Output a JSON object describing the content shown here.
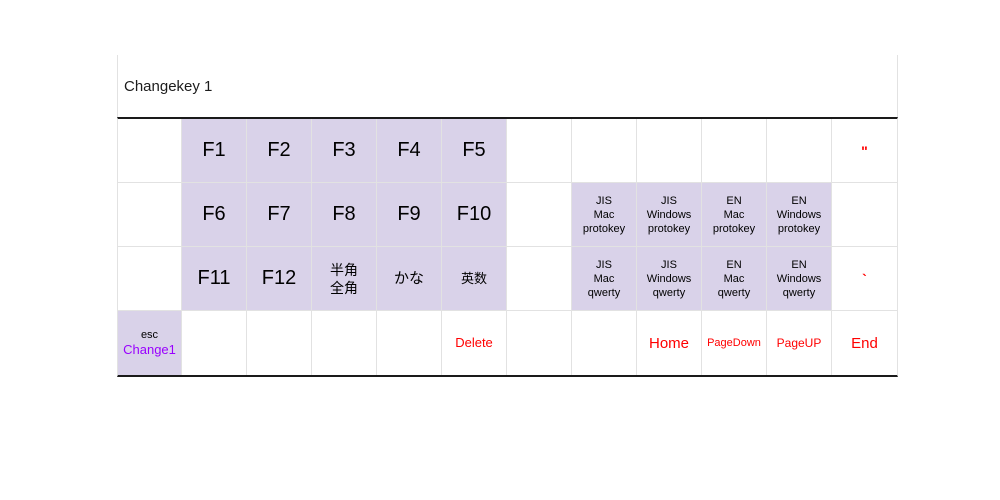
{
  "header": {
    "title": "Changekey 1"
  },
  "colors": {
    "key_bg": "#d9d2e9",
    "red": "#ff0000",
    "purple": "#9900ff",
    "text": "#000000",
    "grid_line": "#e2e2e2",
    "table_border": "#1a1a1a"
  },
  "grid": {
    "columns": 12,
    "rows": [
      {
        "cells": [
          {},
          {
            "n": "key-f1",
            "k": true,
            "l": [
              {
                "t": "F1",
                "s": 20
              }
            ]
          },
          {
            "n": "key-f2",
            "k": true,
            "l": [
              {
                "t": "F2",
                "s": 20
              }
            ]
          },
          {
            "n": "key-f3",
            "k": true,
            "l": [
              {
                "t": "F3",
                "s": 20
              }
            ]
          },
          {
            "n": "key-f4",
            "k": true,
            "l": [
              {
                "t": "F4",
                "s": 20
              }
            ]
          },
          {
            "n": "key-f5",
            "k": true,
            "l": [
              {
                "t": "F5",
                "s": 20
              }
            ]
          },
          {},
          {},
          {},
          {},
          {},
          {
            "n": "key-doublequote",
            "l": [
              {
                "t": "\"",
                "s": 14,
                "c": "red",
                "b": true
              }
            ]
          }
        ]
      },
      {
        "cells": [
          {},
          {
            "n": "key-f6",
            "k": true,
            "l": [
              {
                "t": "F6",
                "s": 20
              }
            ]
          },
          {
            "n": "key-f7",
            "k": true,
            "l": [
              {
                "t": "F7",
                "s": 20
              }
            ]
          },
          {
            "n": "key-f8",
            "k": true,
            "l": [
              {
                "t": "F8",
                "s": 20
              }
            ]
          },
          {
            "n": "key-f9",
            "k": true,
            "l": [
              {
                "t": "F9",
                "s": 20
              }
            ]
          },
          {
            "n": "key-f10",
            "k": true,
            "l": [
              {
                "t": "F10",
                "s": 20
              }
            ]
          },
          {},
          {
            "n": "key-jis-mac-protokey",
            "k": true,
            "l": [
              {
                "t": "JIS",
                "s": 11
              },
              {
                "t": "Mac",
                "s": 11
              },
              {
                "t": "protokey",
                "s": 11
              }
            ]
          },
          {
            "n": "key-jis-windows-protokey",
            "k": true,
            "l": [
              {
                "t": "JIS",
                "s": 11
              },
              {
                "t": "Windows",
                "s": 11
              },
              {
                "t": "protokey",
                "s": 11
              }
            ]
          },
          {
            "n": "key-en-mac-protokey",
            "k": true,
            "l": [
              {
                "t": "EN",
                "s": 11
              },
              {
                "t": "Mac",
                "s": 11
              },
              {
                "t": "protokey",
                "s": 11
              }
            ]
          },
          {
            "n": "key-en-windows-protokey",
            "k": true,
            "l": [
              {
                "t": "EN",
                "s": 11
              },
              {
                "t": "Windows",
                "s": 11
              },
              {
                "t": "protokey",
                "s": 11
              }
            ]
          },
          {}
        ]
      },
      {
        "cells": [
          {},
          {
            "n": "key-f11",
            "k": true,
            "l": [
              {
                "t": "F11",
                "s": 20
              }
            ]
          },
          {
            "n": "key-f12",
            "k": true,
            "l": [
              {
                "t": "F12",
                "s": 20
              }
            ]
          },
          {
            "n": "key-hankaku-zenkaku",
            "k": true,
            "l": [
              {
                "t": "半角",
                "s": 14
              },
              {
                "t": "全角",
                "s": 14
              }
            ]
          },
          {
            "n": "key-kana",
            "k": true,
            "l": [
              {
                "t": "かな",
                "s": 15
              }
            ]
          },
          {
            "n": "key-eisu",
            "k": true,
            "l": [
              {
                "t": "英数",
                "s": 13
              }
            ]
          },
          {},
          {
            "n": "key-jis-mac-qwerty",
            "k": true,
            "l": [
              {
                "t": "JIS",
                "s": 11
              },
              {
                "t": "Mac",
                "s": 11
              },
              {
                "t": "qwerty",
                "s": 11
              }
            ]
          },
          {
            "n": "key-jis-windows-qwerty",
            "k": true,
            "l": [
              {
                "t": "JIS",
                "s": 11
              },
              {
                "t": "Windows",
                "s": 11
              },
              {
                "t": "qwerty",
                "s": 11
              }
            ]
          },
          {
            "n": "key-en-mac-qwerty",
            "k": true,
            "l": [
              {
                "t": "EN",
                "s": 11
              },
              {
                "t": "Mac",
                "s": 11
              },
              {
                "t": "qwerty",
                "s": 11
              }
            ]
          },
          {
            "n": "key-en-windows-qwerty",
            "k": true,
            "l": [
              {
                "t": "EN",
                "s": 11
              },
              {
                "t": "Windows",
                "s": 11
              },
              {
                "t": "qwerty",
                "s": 11
              }
            ]
          },
          {
            "n": "key-backtick",
            "l": [
              {
                "t": "`",
                "s": 14,
                "c": "red",
                "b": true
              }
            ]
          }
        ]
      },
      {
        "cells": [
          {
            "n": "key-esc-change1",
            "k": true,
            "l": [
              {
                "t": "esc",
                "s": 11
              },
              {
                "t": "Change1",
                "s": 13,
                "c": "purple"
              }
            ]
          },
          {},
          {},
          {},
          {},
          {
            "n": "key-delete",
            "l": [
              {
                "t": "Delete",
                "s": 13,
                "c": "red"
              }
            ]
          },
          {},
          {},
          {
            "n": "key-home",
            "l": [
              {
                "t": "Home",
                "s": 15,
                "c": "red"
              }
            ]
          },
          {
            "n": "key-pagedown",
            "l": [
              {
                "t": "PageDown",
                "s": 11,
                "c": "red"
              }
            ]
          },
          {
            "n": "key-pageup",
            "l": [
              {
                "t": "PageUP",
                "s": 12,
                "c": "red"
              }
            ]
          },
          {
            "n": "key-end",
            "l": [
              {
                "t": "End",
                "s": 15,
                "c": "red"
              }
            ]
          }
        ]
      }
    ]
  }
}
